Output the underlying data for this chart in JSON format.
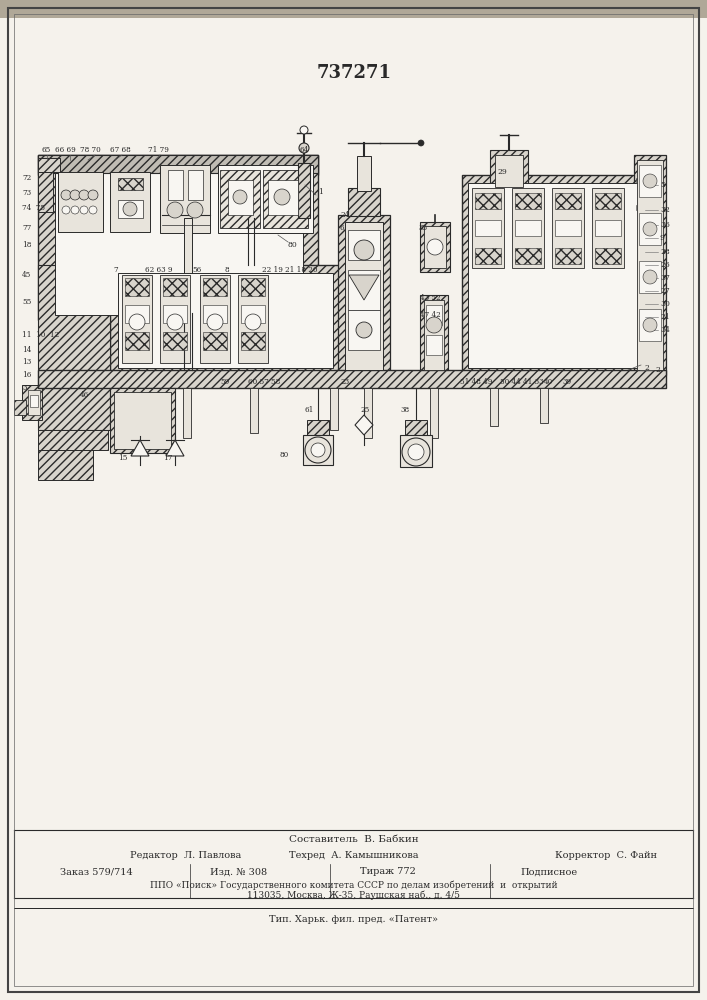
{
  "patent_number": "737271",
  "bg_color": "#f5f2ec",
  "line_color": "#2a2a2a",
  "hatch_color": "#555555",
  "fill_light": "#e8e4dc",
  "fill_med": "#d8d4cc",
  "fill_dark": "#c0bcb4",
  "white": "#f8f6f2",
  "footer_lines": [
    "Составитель  В. Бабкин",
    "Редактор  Л. Павлова",
    "Техред  А. Камышникова",
    "Корректор  С. Файн",
    "Заказ 579/714",
    "Изд. № 308",
    "Тираж 772",
    "Подписное",
    "ППО «Поиск» Государственного комитета СССР по делам изобретений  и  открытий",
    "113035, Москва, Ж-35, Раушская наб., д. 4/5",
    "Тип. Харьк. фил. пред. «Патент»"
  ]
}
